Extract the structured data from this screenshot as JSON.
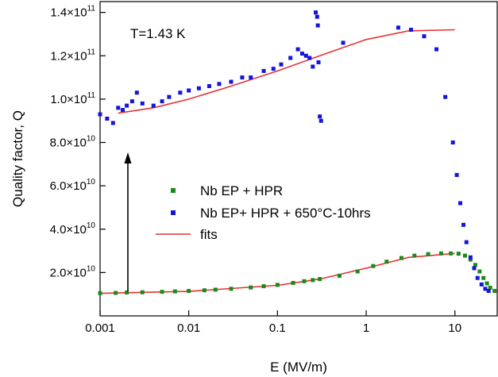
{
  "chart_data": {
    "type": "scatter",
    "annotation": "T=1.43 K",
    "xlabel": "E (MV/m)",
    "ylabel": "Quality factor, Q",
    "x_scale": "log",
    "xlim": [
      0.001,
      30
    ],
    "ylim": [
      0,
      145000000000.0
    ],
    "x_ticks": [
      0.001,
      0.01,
      0.1,
      1,
      10
    ],
    "x_tick_labels": [
      "0.001",
      "0.01",
      "0.1",
      "1",
      "10"
    ],
    "y_ticks": [
      20000000000.0,
      40000000000.0,
      60000000000.0,
      80000000000.0,
      100000000000.0,
      120000000000.0,
      140000000000.0
    ],
    "y_tick_labels": [
      {
        "mantissa": "2.0×10",
        "exp": "10"
      },
      {
        "mantissa": "4.0×10",
        "exp": "10"
      },
      {
        "mantissa": "6.0×10",
        "exp": "10"
      },
      {
        "mantissa": "8.0×10",
        "exp": "10"
      },
      {
        "mantissa": "1.0×10",
        "exp": "11"
      },
      {
        "mantissa": "1.2×10",
        "exp": "11"
      },
      {
        "mantissa": "1.4×10",
        "exp": "11"
      }
    ],
    "grid": false,
    "legend_position": "center-left",
    "series": [
      {
        "name": "Nb EP + HPR",
        "color": "#1a8a1a",
        "marker": "square",
        "points": [
          [
            0.001,
            10500000000.0
          ],
          [
            0.0015,
            10600000000.0
          ],
          [
            0.002,
            10800000000.0
          ],
          [
            0.003,
            10900000000.0
          ],
          [
            0.005,
            11100000000.0
          ],
          [
            0.007,
            11300000000.0
          ],
          [
            0.01,
            11500000000.0
          ],
          [
            0.015,
            11800000000.0
          ],
          [
            0.02,
            12100000000.0
          ],
          [
            0.03,
            12500000000.0
          ],
          [
            0.05,
            13100000000.0
          ],
          [
            0.07,
            13700000000.0
          ],
          [
            0.1,
            14300000000.0
          ],
          [
            0.15,
            15200000000.0
          ],
          [
            0.2,
            16000000000.0
          ],
          [
            0.25,
            16500000000.0
          ],
          [
            0.3,
            17000000000.0
          ],
          [
            0.5,
            18500000000.0
          ],
          [
            0.8,
            20500000000.0
          ],
          [
            1.2,
            23000000000.0
          ],
          [
            1.7,
            25000000000.0
          ],
          [
            2.5,
            26700000000.0
          ],
          [
            3.5,
            27800000000.0
          ],
          [
            5,
            28500000000.0
          ],
          [
            7,
            28800000000.0
          ],
          [
            9,
            28800000000.0
          ],
          [
            11,
            28700000000.0
          ],
          [
            13,
            27800000000.0
          ],
          [
            15,
            26000000000.0
          ],
          [
            17,
            23500000000.0
          ],
          [
            19,
            20500000000.0
          ],
          [
            21,
            17500000000.0
          ],
          [
            23,
            15000000000.0
          ],
          [
            25,
            13000000000.0
          ],
          [
            28,
            11500000000.0
          ]
        ]
      },
      {
        "name": "Nb EP+ HPR + 650°C-10hrs",
        "color": "#1414dc",
        "marker": "square",
        "points": [
          [
            0.001,
            93000000000.0
          ],
          [
            0.0012,
            91000000000.0
          ],
          [
            0.0014,
            89000000000.0
          ],
          [
            0.0016,
            96000000000.0
          ],
          [
            0.0018,
            95000000000.0
          ],
          [
            0.002,
            97000000000.0
          ],
          [
            0.0023,
            99000000000.0
          ],
          [
            0.0026,
            103000000000.0
          ],
          [
            0.003,
            98000000000.0
          ],
          [
            0.004,
            97000000000.0
          ],
          [
            0.005,
            99000000000.0
          ],
          [
            0.006,
            101000000000.0
          ],
          [
            0.008,
            103000000000.0
          ],
          [
            0.01,
            104000000000.0
          ],
          [
            0.013,
            105000000000.0
          ],
          [
            0.017,
            106000000000.0
          ],
          [
            0.022,
            107000000000.0
          ],
          [
            0.03,
            108000000000.0
          ],
          [
            0.04,
            110000000000.0
          ],
          [
            0.05,
            110000000000.0
          ],
          [
            0.07,
            113000000000.0
          ],
          [
            0.09,
            114000000000.0
          ],
          [
            0.11,
            116000000000.0
          ],
          [
            0.14,
            119000000000.0
          ],
          [
            0.17,
            123000000000.0
          ],
          [
            0.19,
            121000000000.0
          ],
          [
            0.21,
            120000000000.0
          ],
          [
            0.23,
            119000000000.0
          ],
          [
            0.25,
            115000000000.0
          ],
          [
            0.27,
            140000000000.0
          ],
          [
            0.28,
            138000000000.0
          ],
          [
            0.285,
            134000000000.0
          ],
          [
            0.29,
            117000000000.0
          ],
          [
            0.3,
            92000000000.0
          ],
          [
            0.31,
            90000000000.0
          ],
          [
            0.55,
            126000000000.0
          ],
          [
            2.3,
            133000000000.0
          ],
          [
            3.2,
            132000000000.0
          ],
          [
            4.5,
            129000000000.0
          ],
          [
            6.2,
            123000000000.0
          ],
          [
            7.8,
            101000000000.0
          ],
          [
            9.5,
            80000000000.0
          ],
          [
            10.5,
            65000000000.0
          ],
          [
            11.5,
            52000000000.0
          ],
          [
            12.5,
            42000000000.0
          ],
          [
            13.5,
            34000000000.0
          ],
          [
            15,
            27000000000.0
          ],
          [
            16.5,
            22000000000.0
          ],
          [
            18,
            17500000000.0
          ],
          [
            20,
            14500000000.0
          ],
          [
            22,
            12500000000.0
          ],
          [
            24,
            11500000000.0
          ]
        ]
      },
      {
        "name": "fits",
        "color": "#e63232",
        "marker": "line",
        "points": [
          [
            0.0016,
            93500000000.0
          ],
          [
            0.004,
            96000000000.0
          ],
          [
            0.01,
            100000000000.0
          ],
          [
            0.03,
            106000000000.0
          ],
          [
            0.1,
            113000000000.0
          ],
          [
            0.3,
            120000000000.0
          ],
          [
            1,
            127500000000.0
          ],
          [
            3,
            131500000000.0
          ],
          [
            10,
            132000000000.0
          ]
        ],
        "points_2": [
          [
            0.001,
            10400000000.0
          ],
          [
            0.01,
            11300000000.0
          ],
          [
            0.1,
            14100000000.0
          ],
          [
            0.3,
            17000000000.0
          ],
          [
            1,
            22000000000.0
          ],
          [
            3,
            27000000000.0
          ],
          [
            10,
            28800000000.0
          ]
        ]
      }
    ]
  }
}
